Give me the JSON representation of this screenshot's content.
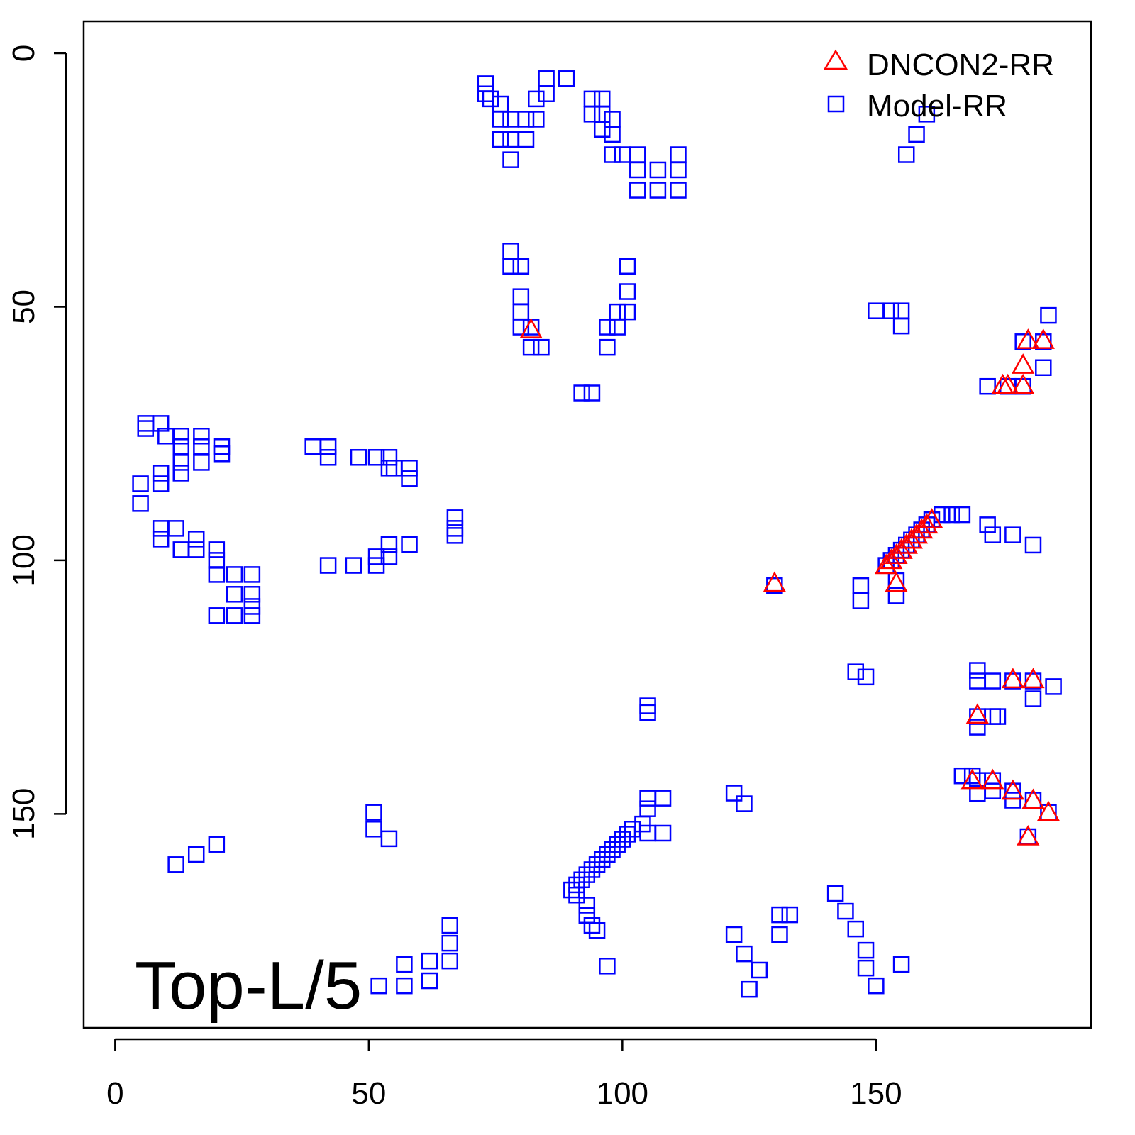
{
  "chart_data": {
    "type": "scatter",
    "title": "",
    "annotation": "Top-L/5",
    "xlabel": "",
    "ylabel": "",
    "xlim": [
      -6.2,
      192.4
    ],
    "ylim": [
      -6.3,
      192.2
    ],
    "y_reversed": true,
    "xticks": [
      "0",
      "50",
      "100",
      "150"
    ],
    "yticks": [
      "0",
      "50",
      "100",
      "150"
    ],
    "xtick_values": [
      0,
      50,
      100,
      150
    ],
    "ytick_values": [
      0,
      50,
      100,
      150
    ],
    "grid": false,
    "legend_position": "top-right",
    "series": [
      {
        "name": "DNCON2-RR",
        "marker": "triangle",
        "color": "#ff0000",
        "points": [
          [
            82,
            54.5
          ],
          [
            180,
            56.6
          ],
          [
            183,
            56.6
          ],
          [
            179,
            61.5
          ],
          [
            175,
            65.5
          ],
          [
            176,
            65.5
          ],
          [
            179,
            65.5
          ],
          [
            130,
            104.5
          ],
          [
            154,
            104.5
          ],
          [
            152,
            101
          ],
          [
            153,
            100
          ],
          [
            154,
            99
          ],
          [
            155,
            98
          ],
          [
            156,
            97
          ],
          [
            157,
            96
          ],
          [
            158,
            95
          ],
          [
            159,
            94
          ],
          [
            160,
            93
          ],
          [
            161,
            92
          ],
          [
            177,
            123.5
          ],
          [
            181,
            123.5
          ],
          [
            170,
            130.5
          ],
          [
            169,
            143.4
          ],
          [
            173,
            143.4
          ],
          [
            177,
            145.5
          ],
          [
            181,
            147.3
          ],
          [
            184,
            149.7
          ],
          [
            180,
            154.5
          ]
        ]
      },
      {
        "name": "Model-RR",
        "marker": "square",
        "color": "#0000ff",
        "points": [
          [
            73,
            6
          ],
          [
            73,
            8
          ],
          [
            74,
            9
          ],
          [
            76,
            10
          ],
          [
            76,
            13
          ],
          [
            76,
            17
          ],
          [
            78,
            13
          ],
          [
            78,
            17
          ],
          [
            78,
            21
          ],
          [
            81,
            13
          ],
          [
            81,
            17
          ],
          [
            83,
            9
          ],
          [
            83,
            13
          ],
          [
            85,
            5
          ],
          [
            85,
            8
          ],
          [
            89,
            5
          ],
          [
            94,
            9
          ],
          [
            94,
            12
          ],
          [
            96,
            9
          ],
          [
            96,
            12
          ],
          [
            96,
            15
          ],
          [
            98,
            13
          ],
          [
            98,
            16
          ],
          [
            98,
            20
          ],
          [
            100,
            20
          ],
          [
            103,
            20
          ],
          [
            103,
            23
          ],
          [
            103,
            27
          ],
          [
            107,
            23
          ],
          [
            107,
            27
          ],
          [
            111,
            20
          ],
          [
            111,
            23
          ],
          [
            111,
            27
          ],
          [
            78,
            39
          ],
          [
            78,
            42
          ],
          [
            80,
            42
          ],
          [
            80,
            48
          ],
          [
            80,
            51
          ],
          [
            80,
            54
          ],
          [
            82,
            54
          ],
          [
            82,
            58
          ],
          [
            84,
            58
          ],
          [
            92,
            67
          ],
          [
            94,
            67
          ],
          [
            101,
            42
          ],
          [
            101,
            47
          ],
          [
            101,
            51
          ],
          [
            99,
            51
          ],
          [
            99,
            54
          ],
          [
            97,
            54
          ],
          [
            97,
            58
          ],
          [
            6,
            73
          ],
          [
            6,
            74
          ],
          [
            9,
            73
          ],
          [
            10,
            75.5
          ],
          [
            13,
            75.5
          ],
          [
            13,
            77.6
          ],
          [
            17,
            75.5
          ],
          [
            17,
            77.6
          ],
          [
            17,
            80.7
          ],
          [
            21,
            77.6
          ],
          [
            21,
            79
          ],
          [
            13,
            80.7
          ],
          [
            13,
            82.8
          ],
          [
            9,
            82.8
          ],
          [
            5,
            84.9
          ],
          [
            9,
            84.9
          ],
          [
            5,
            88.8
          ],
          [
            9,
            93.7
          ],
          [
            9,
            95.8
          ],
          [
            12,
            93.7
          ],
          [
            13,
            97.9
          ],
          [
            16,
            95.8
          ],
          [
            16,
            97.9
          ],
          [
            20,
            97.9
          ],
          [
            20,
            100
          ],
          [
            20,
            102.8
          ],
          [
            23.5,
            102.8
          ],
          [
            27,
            102.8
          ],
          [
            23.5,
            106.7
          ],
          [
            27,
            106.7
          ],
          [
            20,
            110.9
          ],
          [
            23.5,
            110.9
          ],
          [
            27,
            110.9
          ],
          [
            27,
            109.1
          ],
          [
            39,
            77.6
          ],
          [
            42,
            77.6
          ],
          [
            42,
            79.7
          ],
          [
            48,
            79.7
          ],
          [
            51.5,
            79.7
          ],
          [
            54,
            79.7
          ],
          [
            54,
            81.8
          ],
          [
            55,
            81.8
          ],
          [
            58,
            81.8
          ],
          [
            58,
            83.9
          ],
          [
            67,
            91.6
          ],
          [
            67,
            93.7
          ],
          [
            67,
            95.1
          ],
          [
            42,
            101
          ],
          [
            47,
            101
          ],
          [
            51.5,
            99.3
          ],
          [
            51.5,
            101
          ],
          [
            54,
            96.9
          ],
          [
            54,
            99.3
          ],
          [
            58,
            96.9
          ],
          [
            150,
            50.8
          ],
          [
            153,
            50.8
          ],
          [
            155,
            50.8
          ],
          [
            155,
            53.8
          ],
          [
            184,
            51.7
          ],
          [
            183,
            56.9
          ],
          [
            179,
            56.9
          ],
          [
            183,
            62
          ],
          [
            172,
            65.7
          ],
          [
            176,
            65.7
          ],
          [
            179,
            65.7
          ],
          [
            156,
            20
          ],
          [
            158,
            16
          ],
          [
            160,
            12
          ],
          [
            152,
            101
          ],
          [
            153,
            100
          ],
          [
            154,
            99
          ],
          [
            155,
            98
          ],
          [
            156,
            97
          ],
          [
            157,
            96
          ],
          [
            158,
            95
          ],
          [
            159,
            94
          ],
          [
            160,
            93
          ],
          [
            161,
            92
          ],
          [
            163,
            91
          ],
          [
            165,
            91
          ],
          [
            167,
            91
          ],
          [
            154,
            104
          ],
          [
            154,
            107
          ],
          [
            147,
            105
          ],
          [
            147,
            108
          ],
          [
            130,
            105
          ],
          [
            172,
            93
          ],
          [
            173,
            95
          ],
          [
            177,
            95
          ],
          [
            181,
            97
          ],
          [
            146,
            122
          ],
          [
            148,
            123
          ],
          [
            170,
            121.7
          ],
          [
            170,
            123.8
          ],
          [
            173,
            123.8
          ],
          [
            177,
            123.8
          ],
          [
            181,
            123.8
          ],
          [
            181,
            127.3
          ],
          [
            185,
            124.9
          ],
          [
            170,
            130.8
          ],
          [
            173,
            130.8
          ],
          [
            174,
            130.8
          ],
          [
            170,
            132.9
          ],
          [
            167,
            142.5
          ],
          [
            169,
            142.5
          ],
          [
            170,
            143.4
          ],
          [
            170,
            146
          ],
          [
            173,
            143.4
          ],
          [
            173,
            145.5
          ],
          [
            177,
            145.5
          ],
          [
            177,
            147.3
          ],
          [
            181,
            147.3
          ],
          [
            184,
            149.7
          ],
          [
            180,
            154.5
          ],
          [
            122,
            145.9
          ],
          [
            124,
            148
          ],
          [
            105,
            146.9
          ],
          [
            108,
            146.9
          ],
          [
            105,
            149
          ],
          [
            108,
            153.8
          ],
          [
            105,
            153.8
          ],
          [
            105,
            128.7
          ],
          [
            105,
            130
          ],
          [
            104,
            152
          ],
          [
            102,
            153
          ],
          [
            101,
            154
          ],
          [
            100,
            155
          ],
          [
            99,
            156
          ],
          [
            98,
            157
          ],
          [
            97,
            158
          ],
          [
            96,
            159
          ],
          [
            95,
            160
          ],
          [
            94,
            161
          ],
          [
            93,
            162
          ],
          [
            92,
            163
          ],
          [
            91,
            164
          ],
          [
            90,
            165
          ],
          [
            91,
            166
          ],
          [
            93,
            168
          ],
          [
            93,
            170
          ],
          [
            94,
            172
          ],
          [
            95,
            173
          ],
          [
            97,
            180
          ],
          [
            51,
            149.7
          ],
          [
            51,
            153
          ],
          [
            54,
            154.9
          ],
          [
            20,
            156
          ],
          [
            16,
            158
          ],
          [
            12,
            160
          ],
          [
            52,
            183.9
          ],
          [
            57,
            179.7
          ],
          [
            57,
            183.9
          ],
          [
            62,
            179
          ],
          [
            62,
            182.9
          ],
          [
            66,
            172
          ],
          [
            66,
            175.5
          ],
          [
            66,
            179
          ],
          [
            122,
            173.8
          ],
          [
            124,
            177.6
          ],
          [
            125,
            184.6
          ],
          [
            127,
            180.8
          ],
          [
            131,
            169.9
          ],
          [
            131,
            173.8
          ],
          [
            133,
            169.9
          ],
          [
            142,
            165.7
          ],
          [
            144,
            169.2
          ],
          [
            146,
            172.7
          ],
          [
            148,
            176.9
          ],
          [
            148,
            180.4
          ],
          [
            150,
            183.9
          ],
          [
            155,
            179.7
          ]
        ]
      }
    ]
  }
}
